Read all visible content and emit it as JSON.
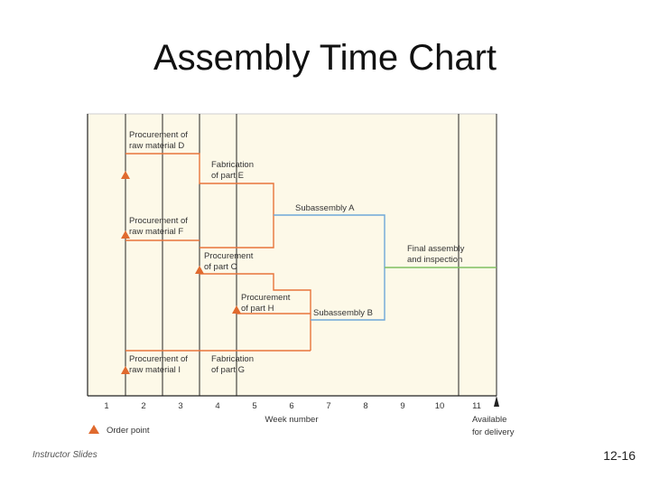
{
  "title": "Assembly Time Chart",
  "footer": {
    "left": "Instructor Slides",
    "right": "12-16"
  },
  "axis": {
    "weeks": [
      "1",
      "2",
      "3",
      "4",
      "5",
      "6",
      "7",
      "8",
      "9",
      "10",
      "11"
    ],
    "label": "Week number",
    "end_label_line1": "Available",
    "end_label_line2": "for delivery"
  },
  "legend": {
    "order_point": "Order point"
  },
  "tasks": {
    "proc_d": [
      "Procurement of",
      "raw material D"
    ],
    "fab_e": [
      "Fabrication",
      "of part E"
    ],
    "sub_a": [
      "Subassembly A"
    ],
    "proc_f": [
      "Procurement of",
      "raw material F"
    ],
    "proc_c": [
      "Procurement",
      "of part C"
    ],
    "final": [
      "Final assembly",
      "and inspection"
    ],
    "proc_h": [
      "Procurement",
      "of part H"
    ],
    "sub_b": [
      "Subassembly B"
    ],
    "proc_i": [
      "Procurement of",
      "raw material I"
    ],
    "fab_g": [
      "Fabrication",
      "of part G"
    ]
  },
  "colors": {
    "panel": "#fdf9e8",
    "procurement": "#e8743b",
    "subassembly": "#6ea8d8",
    "final": "#7fc060",
    "triangle": "#e06a2e"
  }
}
